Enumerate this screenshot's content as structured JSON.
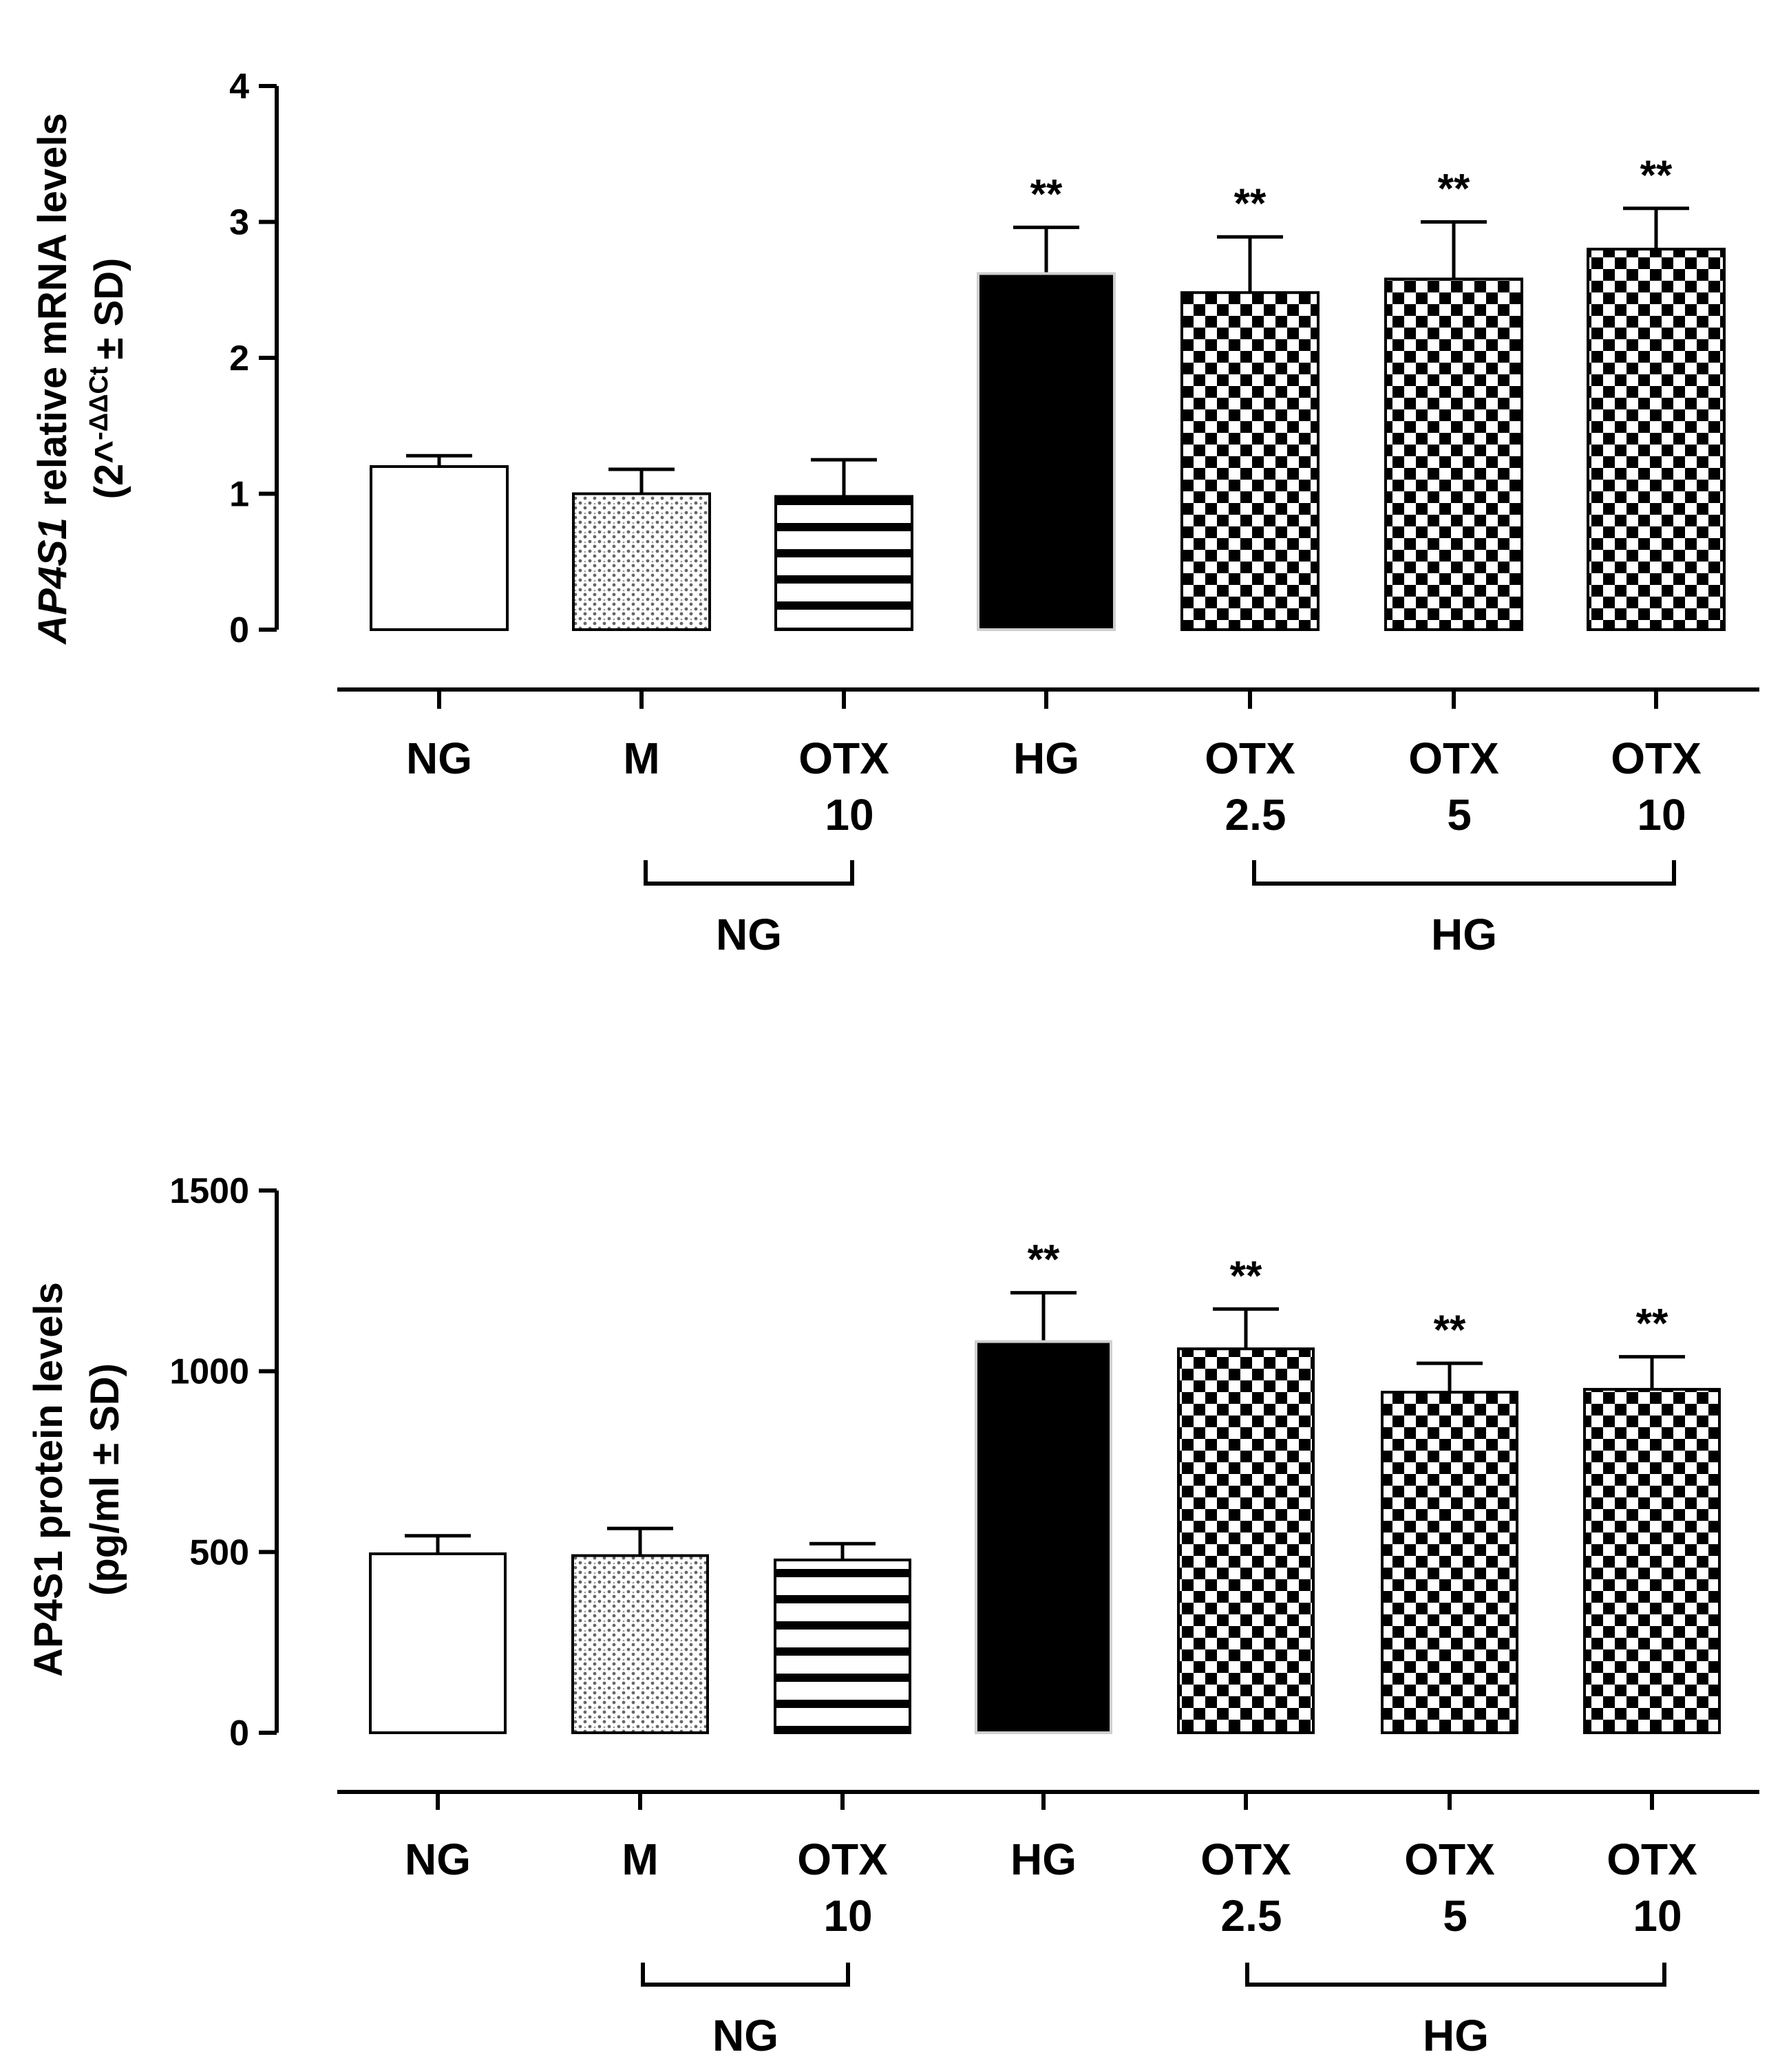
{
  "chart_data": [
    {
      "type": "bar",
      "id": "mrna",
      "categories": [
        "NG",
        "M",
        "OTX 10",
        "HG",
        "OTX 2.5",
        "OTX 5",
        "OTX 10"
      ],
      "category_lines": [
        [
          "NG"
        ],
        [
          "M"
        ],
        [
          "OTX",
          "10"
        ],
        [
          "HG"
        ],
        [
          "OTX",
          "2.5"
        ],
        [
          "OTX",
          "5"
        ],
        [
          "OTX",
          "10"
        ]
      ],
      "patterns": [
        "open",
        "dots",
        "stripes",
        "solid",
        "checker",
        "checker",
        "checker"
      ],
      "values": [
        1.2,
        1.0,
        0.98,
        2.62,
        2.48,
        2.58,
        2.8
      ],
      "errors": [
        0.08,
        0.18,
        0.27,
        0.34,
        0.41,
        0.42,
        0.3
      ],
      "significance": [
        "",
        "",
        "",
        "**",
        "**",
        "**",
        "**"
      ],
      "ylim": [
        0,
        4
      ],
      "yticks": [
        0,
        1,
        2,
        3,
        4
      ],
      "ylabel": {
        "line1_italic": "AP4S1",
        "line1_rest": " relative mRNA levels",
        "line2_open": "(2^",
        "line2_sup": "-ΔΔCt",
        "line2_close": "± SD)"
      },
      "groups": [
        {
          "label": "NG",
          "from": 1,
          "to": 2
        },
        {
          "label": "HG",
          "from": 4,
          "to": 6
        }
      ]
    },
    {
      "type": "bar",
      "id": "protein",
      "categories": [
        "NG",
        "M",
        "OTX 10",
        "HG",
        "OTX 2.5",
        "OTX 5",
        "OTX 10"
      ],
      "category_lines": [
        [
          "NG"
        ],
        [
          "M"
        ],
        [
          "OTX",
          "10"
        ],
        [
          "HG"
        ],
        [
          "OTX",
          "2.5"
        ],
        [
          "OTX",
          "5"
        ],
        [
          "OTX",
          "10"
        ]
      ],
      "patterns": [
        "open",
        "dots",
        "stripes",
        "solid",
        "checker",
        "checker",
        "checker"
      ],
      "values": [
        495,
        490,
        478,
        1082,
        1062,
        942,
        950
      ],
      "errors": [
        50,
        75,
        45,
        135,
        110,
        80,
        90
      ],
      "significance": [
        "",
        "",
        "",
        "**",
        "**",
        "**",
        "**"
      ],
      "ylim": [
        0,
        1500
      ],
      "yticks": [
        0,
        500,
        1000,
        1500
      ],
      "ylabel": {
        "line1": "AP4S1 protein levels",
        "line2": "(pg/ml ± SD)"
      },
      "groups": [
        {
          "label": "NG",
          "from": 1,
          "to": 2
        },
        {
          "label": "HG",
          "from": 4,
          "to": 6
        }
      ]
    }
  ]
}
